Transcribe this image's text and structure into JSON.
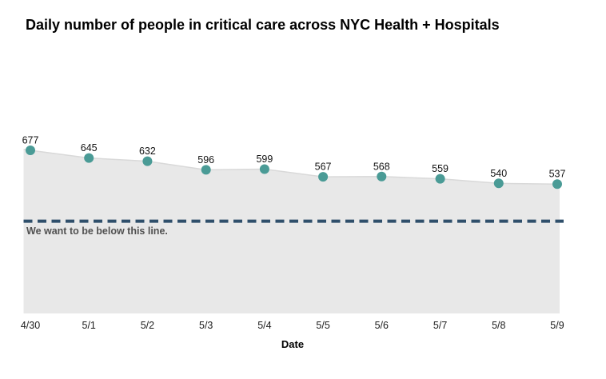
{
  "chart_data": {
    "type": "area",
    "title": "Daily number of people in critical care across NYC Health + Hospitals",
    "xlabel": "Date",
    "ylabel": "",
    "categories": [
      "4/30",
      "5/1",
      "5/2",
      "5/3",
      "5/4",
      "5/5",
      "5/6",
      "5/7",
      "5/8",
      "5/9"
    ],
    "values": [
      677,
      645,
      632,
      596,
      599,
      567,
      568,
      559,
      540,
      537
    ],
    "ylim": [
      0,
      680
    ],
    "grid": false,
    "legend": "none",
    "point_labels_shown": true,
    "threshold": {
      "label": "We want to be below this line.",
      "estimated_value": 383,
      "style": "dashed"
    },
    "colors": {
      "marker": "#4a9b96",
      "area_fill": "#e8e8e8",
      "area_edge": "#d9d9d9",
      "threshold_line": "#2f4f6b",
      "value_label_text": "#141414",
      "tick_label_text": "#1c1c1c",
      "annotation_text": "#515151",
      "title_text": "#000000"
    }
  }
}
